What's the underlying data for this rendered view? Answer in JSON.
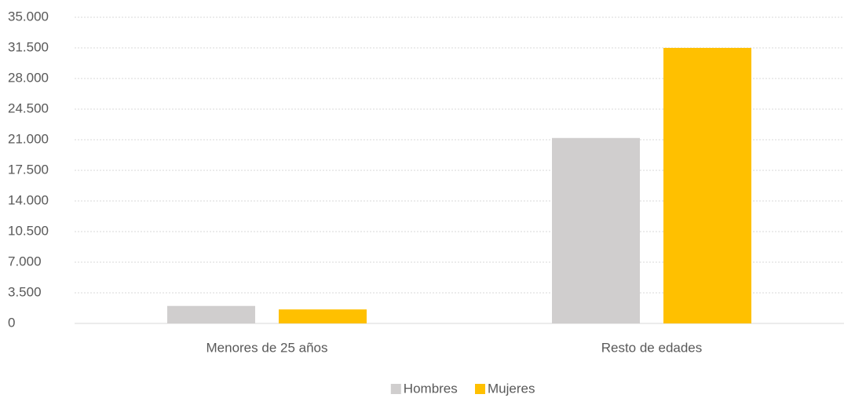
{
  "chart_data": {
    "type": "bar",
    "categories": [
      "Menores de 25 años",
      "Resto de edades"
    ],
    "series": [
      {
        "name": "Hombres",
        "color": "#d0cece",
        "values": [
          2000,
          21200
        ]
      },
      {
        "name": "Mujeres",
        "color": "#ffc000",
        "values": [
          1600,
          31500
        ]
      }
    ],
    "ylim": [
      0,
      35000
    ],
    "yticks": [
      0,
      {
        "value": 3500,
        "label": "3.500"
      },
      {
        "value": 7000,
        "label": "7.000"
      },
      {
        "value": 10500,
        "label": "10.500"
      },
      {
        "value": 14000,
        "label": "14.000"
      },
      {
        "value": 17500,
        "label": "17.500"
      },
      {
        "value": 21000,
        "label": "21.000"
      },
      {
        "value": 24500,
        "label": "24.500"
      },
      {
        "value": 28000,
        "label": "28.000"
      },
      {
        "value": 31500,
        "label": "31.500"
      },
      {
        "value": 35000,
        "label": "35.000"
      }
    ],
    "grid": true,
    "legend": "bottom"
  }
}
